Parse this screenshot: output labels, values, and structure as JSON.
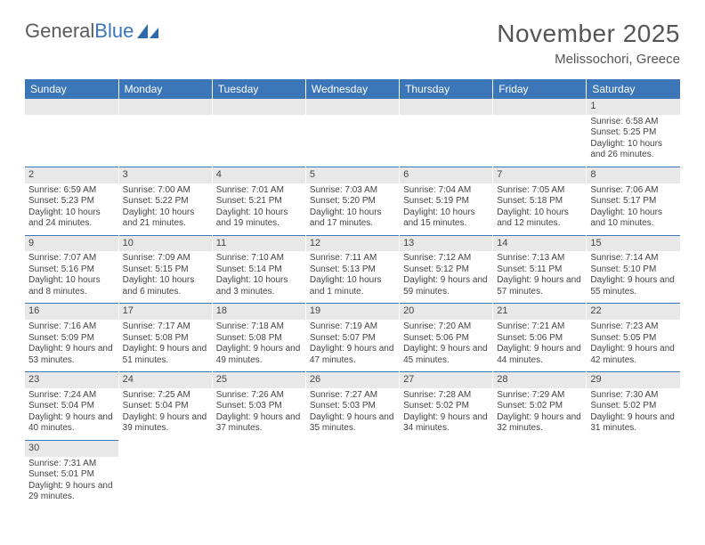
{
  "brand": {
    "part1": "General",
    "part2": "Blue"
  },
  "title": "November 2025",
  "subtitle": "Melissochori, Greece",
  "colors": {
    "header_bg": "#3a76b8",
    "header_text": "#ffffff",
    "daybar_bg": "#e8e8e8",
    "divider": "#3a76b8",
    "text": "#444444",
    "title_text": "#555555"
  },
  "weekday_headers": [
    "Sunday",
    "Monday",
    "Tuesday",
    "Wednesday",
    "Thursday",
    "Friday",
    "Saturday"
  ],
  "weeks": [
    [
      {
        "empty": true
      },
      {
        "empty": true
      },
      {
        "empty": true
      },
      {
        "empty": true
      },
      {
        "empty": true
      },
      {
        "empty": true
      },
      {
        "day": "1",
        "sunrise": "Sunrise: 6:58 AM",
        "sunset": "Sunset: 5:25 PM",
        "daylight": "Daylight: 10 hours and 26 minutes."
      }
    ],
    [
      {
        "day": "2",
        "sunrise": "Sunrise: 6:59 AM",
        "sunset": "Sunset: 5:23 PM",
        "daylight": "Daylight: 10 hours and 24 minutes."
      },
      {
        "day": "3",
        "sunrise": "Sunrise: 7:00 AM",
        "sunset": "Sunset: 5:22 PM",
        "daylight": "Daylight: 10 hours and 21 minutes."
      },
      {
        "day": "4",
        "sunrise": "Sunrise: 7:01 AM",
        "sunset": "Sunset: 5:21 PM",
        "daylight": "Daylight: 10 hours and 19 minutes."
      },
      {
        "day": "5",
        "sunrise": "Sunrise: 7:03 AM",
        "sunset": "Sunset: 5:20 PM",
        "daylight": "Daylight: 10 hours and 17 minutes."
      },
      {
        "day": "6",
        "sunrise": "Sunrise: 7:04 AM",
        "sunset": "Sunset: 5:19 PM",
        "daylight": "Daylight: 10 hours and 15 minutes."
      },
      {
        "day": "7",
        "sunrise": "Sunrise: 7:05 AM",
        "sunset": "Sunset: 5:18 PM",
        "daylight": "Daylight: 10 hours and 12 minutes."
      },
      {
        "day": "8",
        "sunrise": "Sunrise: 7:06 AM",
        "sunset": "Sunset: 5:17 PM",
        "daylight": "Daylight: 10 hours and 10 minutes."
      }
    ],
    [
      {
        "day": "9",
        "sunrise": "Sunrise: 7:07 AM",
        "sunset": "Sunset: 5:16 PM",
        "daylight": "Daylight: 10 hours and 8 minutes."
      },
      {
        "day": "10",
        "sunrise": "Sunrise: 7:09 AM",
        "sunset": "Sunset: 5:15 PM",
        "daylight": "Daylight: 10 hours and 6 minutes."
      },
      {
        "day": "11",
        "sunrise": "Sunrise: 7:10 AM",
        "sunset": "Sunset: 5:14 PM",
        "daylight": "Daylight: 10 hours and 3 minutes."
      },
      {
        "day": "12",
        "sunrise": "Sunrise: 7:11 AM",
        "sunset": "Sunset: 5:13 PM",
        "daylight": "Daylight: 10 hours and 1 minute."
      },
      {
        "day": "13",
        "sunrise": "Sunrise: 7:12 AM",
        "sunset": "Sunset: 5:12 PM",
        "daylight": "Daylight: 9 hours and 59 minutes."
      },
      {
        "day": "14",
        "sunrise": "Sunrise: 7:13 AM",
        "sunset": "Sunset: 5:11 PM",
        "daylight": "Daylight: 9 hours and 57 minutes."
      },
      {
        "day": "15",
        "sunrise": "Sunrise: 7:14 AM",
        "sunset": "Sunset: 5:10 PM",
        "daylight": "Daylight: 9 hours and 55 minutes."
      }
    ],
    [
      {
        "day": "16",
        "sunrise": "Sunrise: 7:16 AM",
        "sunset": "Sunset: 5:09 PM",
        "daylight": "Daylight: 9 hours and 53 minutes."
      },
      {
        "day": "17",
        "sunrise": "Sunrise: 7:17 AM",
        "sunset": "Sunset: 5:08 PM",
        "daylight": "Daylight: 9 hours and 51 minutes."
      },
      {
        "day": "18",
        "sunrise": "Sunrise: 7:18 AM",
        "sunset": "Sunset: 5:08 PM",
        "daylight": "Daylight: 9 hours and 49 minutes."
      },
      {
        "day": "19",
        "sunrise": "Sunrise: 7:19 AM",
        "sunset": "Sunset: 5:07 PM",
        "daylight": "Daylight: 9 hours and 47 minutes."
      },
      {
        "day": "20",
        "sunrise": "Sunrise: 7:20 AM",
        "sunset": "Sunset: 5:06 PM",
        "daylight": "Daylight: 9 hours and 45 minutes."
      },
      {
        "day": "21",
        "sunrise": "Sunrise: 7:21 AM",
        "sunset": "Sunset: 5:06 PM",
        "daylight": "Daylight: 9 hours and 44 minutes."
      },
      {
        "day": "22",
        "sunrise": "Sunrise: 7:23 AM",
        "sunset": "Sunset: 5:05 PM",
        "daylight": "Daylight: 9 hours and 42 minutes."
      }
    ],
    [
      {
        "day": "23",
        "sunrise": "Sunrise: 7:24 AM",
        "sunset": "Sunset: 5:04 PM",
        "daylight": "Daylight: 9 hours and 40 minutes."
      },
      {
        "day": "24",
        "sunrise": "Sunrise: 7:25 AM",
        "sunset": "Sunset: 5:04 PM",
        "daylight": "Daylight: 9 hours and 39 minutes."
      },
      {
        "day": "25",
        "sunrise": "Sunrise: 7:26 AM",
        "sunset": "Sunset: 5:03 PM",
        "daylight": "Daylight: 9 hours and 37 minutes."
      },
      {
        "day": "26",
        "sunrise": "Sunrise: 7:27 AM",
        "sunset": "Sunset: 5:03 PM",
        "daylight": "Daylight: 9 hours and 35 minutes."
      },
      {
        "day": "27",
        "sunrise": "Sunrise: 7:28 AM",
        "sunset": "Sunset: 5:02 PM",
        "daylight": "Daylight: 9 hours and 34 minutes."
      },
      {
        "day": "28",
        "sunrise": "Sunrise: 7:29 AM",
        "sunset": "Sunset: 5:02 PM",
        "daylight": "Daylight: 9 hours and 32 minutes."
      },
      {
        "day": "29",
        "sunrise": "Sunrise: 7:30 AM",
        "sunset": "Sunset: 5:02 PM",
        "daylight": "Daylight: 9 hours and 31 minutes."
      }
    ],
    [
      {
        "day": "30",
        "sunrise": "Sunrise: 7:31 AM",
        "sunset": "Sunset: 5:01 PM",
        "daylight": "Daylight: 9 hours and 29 minutes."
      },
      {
        "empty": true
      },
      {
        "empty": true
      },
      {
        "empty": true
      },
      {
        "empty": true
      },
      {
        "empty": true
      },
      {
        "empty": true
      }
    ]
  ]
}
